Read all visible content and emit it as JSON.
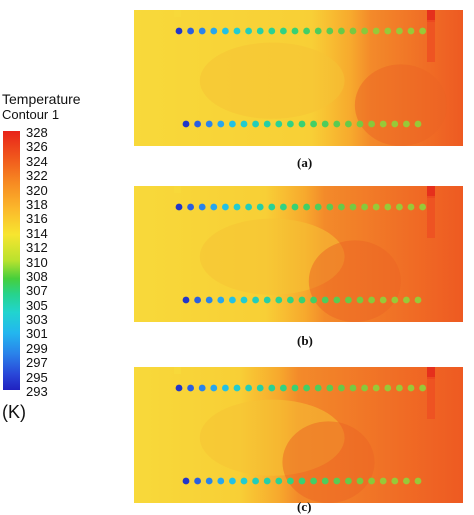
{
  "legend": {
    "title": "Temperature",
    "subtitle": "Contour 1",
    "unit": "(K)",
    "ticks": [
      "328",
      "326",
      "324",
      "322",
      "320",
      "318",
      "316",
      "314",
      "312",
      "310",
      "308",
      "307",
      "305",
      "303",
      "301",
      "299",
      "297",
      "295",
      "293"
    ]
  },
  "panels": [
    {
      "label": "(a)",
      "hot_fraction": 0.72
    },
    {
      "label": "(b)",
      "hot_fraction": 0.58
    },
    {
      "label": "(c)",
      "hot_fraction": 0.5
    }
  ],
  "colors": {
    "hot": "#ee5a22",
    "warm": "#f7a92d",
    "ambient": "#f8d93a",
    "cold": "#2139c8"
  }
}
